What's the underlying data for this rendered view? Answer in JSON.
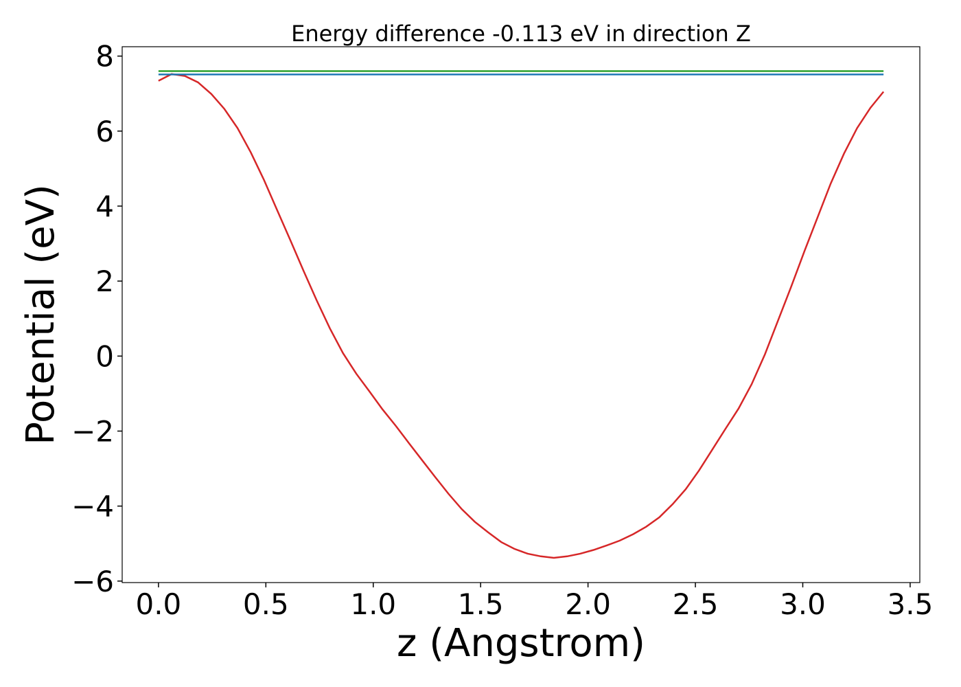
{
  "chart_data": {
    "type": "line",
    "title": "Energy difference -0.113 eV in direction Z",
    "xlabel": "z (Angstrom)",
    "ylabel": "Potential (eV)",
    "xlim": [
      -0.169,
      3.545
    ],
    "ylim": [
      -6.04,
      8.25
    ],
    "xticks": [
      {
        "value": 0,
        "label": "0.0"
      },
      0.5,
      {
        "value": 1,
        "label": "1.0"
      },
      1.5,
      {
        "value": 2,
        "label": "2.0"
      },
      2.5,
      {
        "value": 3,
        "label": "3.0"
      },
      3.5
    ],
    "yticks": [
      {
        "value": -6,
        "label": "−6"
      },
      {
        "value": -4,
        "label": "−4"
      },
      {
        "value": -2,
        "label": "−2"
      },
      0,
      2,
      4,
      6,
      8
    ],
    "series": [
      {
        "color": "#d62728",
        "x": [
          0,
          0.061,
          0.123,
          0.184,
          0.246,
          0.307,
          0.368,
          0.43,
          0.491,
          0.552,
          0.614,
          0.675,
          0.737,
          0.798,
          0.859,
          0.921,
          0.982,
          1.043,
          1.105,
          1.166,
          1.228,
          1.289,
          1.35,
          1.412,
          1.473,
          1.535,
          1.596,
          1.657,
          1.719,
          1.78,
          1.841,
          1.903,
          1.964,
          2.026,
          2.087,
          2.148,
          2.21,
          2.271,
          2.332,
          2.394,
          2.455,
          2.517,
          2.578,
          2.639,
          2.701,
          2.762,
          2.824,
          2.885,
          2.946,
          3.008,
          3.069,
          3.13,
          3.192,
          3.253,
          3.315,
          3.376
        ],
        "values": [
          7.34,
          7.52,
          7.47,
          7.3,
          6.99,
          6.59,
          6.08,
          5.43,
          4.7,
          3.9,
          3.09,
          2.28,
          1.48,
          0.74,
          0.08,
          -0.47,
          -0.94,
          -1.42,
          -1.86,
          -2.32,
          -2.78,
          -3.23,
          -3.67,
          -4.08,
          -4.42,
          -4.7,
          -4.96,
          -5.14,
          -5.27,
          -5.34,
          -5.38,
          -5.34,
          -5.27,
          -5.17,
          -5.05,
          -4.92,
          -4.75,
          -4.55,
          -4.3,
          -3.95,
          -3.55,
          -3.05,
          -2.5,
          -1.95,
          -1.4,
          -0.75,
          0.05,
          0.95,
          1.85,
          2.8,
          3.7,
          4.6,
          5.4,
          6.08,
          6.62,
          7.05
        ]
      },
      {
        "color": "#2ca02c",
        "x": [
          0,
          3.376
        ],
        "values": [
          7.6,
          7.6
        ]
      },
      {
        "color": "#1f77b4",
        "x": [
          0,
          3.376
        ],
        "values": [
          7.51,
          7.51
        ]
      }
    ]
  }
}
